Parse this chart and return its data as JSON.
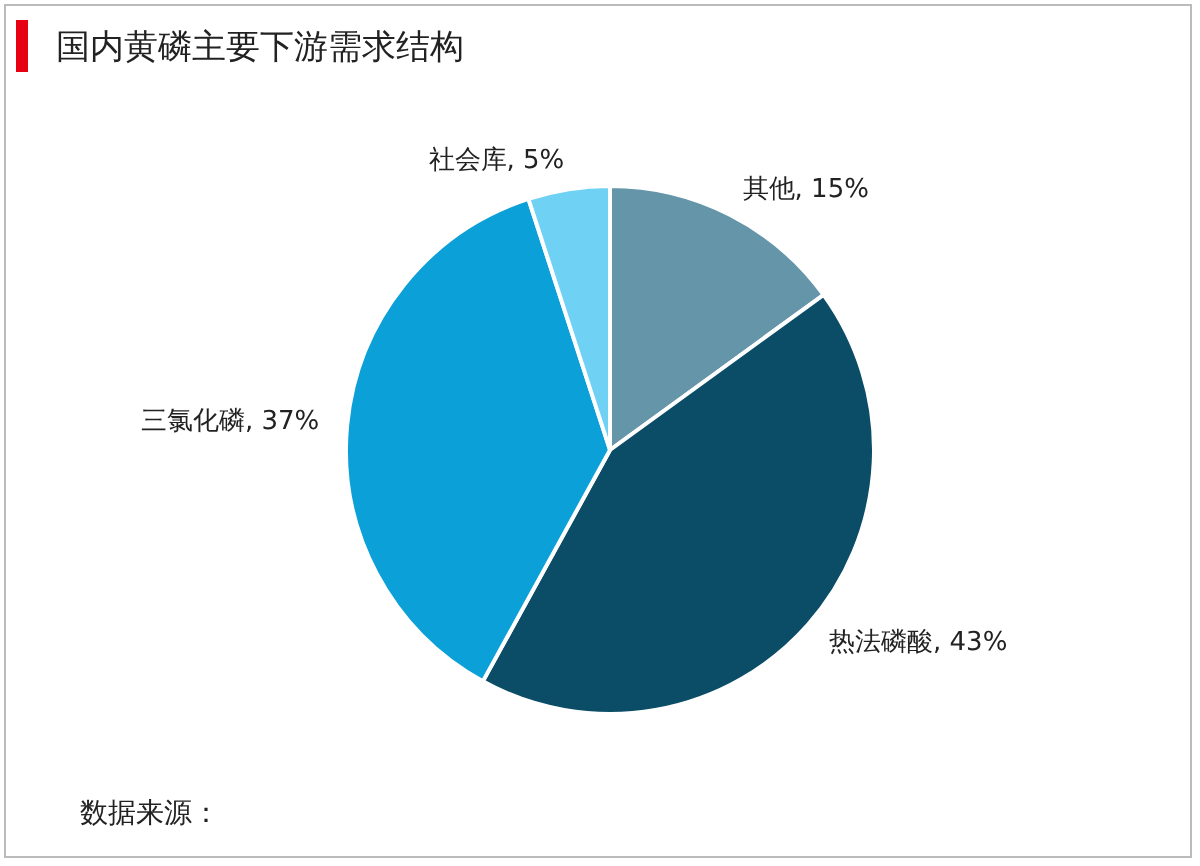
{
  "chart_data": {
    "type": "pie",
    "title": "国内黄磷主要下游需求结构",
    "annotations": [
      "数据来源："
    ],
    "categories": [
      "其他",
      "热法磷酸",
      "三氯化磷",
      "社会库"
    ],
    "values": [
      15,
      43,
      37,
      5
    ],
    "value_labels": [
      "15%",
      "43%",
      "37%",
      "5%"
    ],
    "colors": [
      "#6495a8",
      "#0b4c66",
      "#0ba0d8",
      "#6fd2f4"
    ],
    "legend": false
  }
}
